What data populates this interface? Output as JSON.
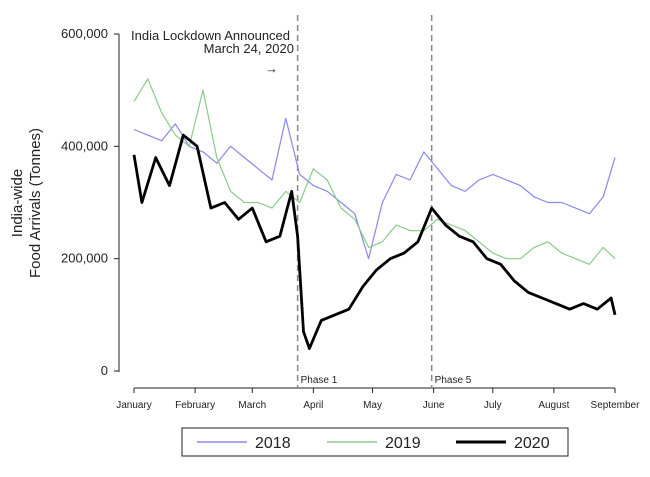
{
  "chart_data": {
    "type": "line",
    "ylabel_line1": "India-wide",
    "ylabel_line2": "Food Arrivals (Tonnes)",
    "xlabel": "",
    "ylim": [
      0,
      600000
    ],
    "yticks": [
      {
        "value": 0,
        "label": "0"
      },
      {
        "value": 200000,
        "label": "200,000"
      },
      {
        "value": 400000,
        "label": "400,000"
      },
      {
        "value": 600000,
        "label": "600,000"
      }
    ],
    "x_domain": [
      "2020-01-01",
      "2020-09-01"
    ],
    "xticks": [
      {
        "date": "2020-01-01",
        "label": "January"
      },
      {
        "date": "2020-02-01",
        "label": "February"
      },
      {
        "date": "2020-03-01",
        "label": "March"
      },
      {
        "date": "2020-04-01",
        "label": "April"
      },
      {
        "date": "2020-05-01",
        "label": "May"
      },
      {
        "date": "2020-06-01",
        "label": "June"
      },
      {
        "date": "2020-07-01",
        "label": "July"
      },
      {
        "date": "2020-08-01",
        "label": "August"
      },
      {
        "date": "2020-09-01",
        "label": "September"
      }
    ],
    "vlines": [
      {
        "date": "2020-03-24",
        "label": "Phase 1"
      },
      {
        "date": "2020-05-31",
        "label": "Phase 5"
      }
    ],
    "annotation": {
      "line1": "India Lockdown Announced",
      "line2": "March 24, 2020",
      "arrow": "→"
    },
    "legend_position": "bottom",
    "series": [
      {
        "name": "2018",
        "color": "#8888ee",
        "x": [
          "2020-01-01",
          "2020-01-08",
          "2020-01-15",
          "2020-01-22",
          "2020-01-29",
          "2020-02-05",
          "2020-02-12",
          "2020-02-19",
          "2020-02-26",
          "2020-03-04",
          "2020-03-11",
          "2020-03-18",
          "2020-03-25",
          "2020-04-01",
          "2020-04-08",
          "2020-04-15",
          "2020-04-22",
          "2020-04-29",
          "2020-05-06",
          "2020-05-13",
          "2020-05-20",
          "2020-05-27",
          "2020-06-03",
          "2020-06-10",
          "2020-06-17",
          "2020-06-24",
          "2020-07-01",
          "2020-07-08",
          "2020-07-15",
          "2020-07-22",
          "2020-07-29",
          "2020-08-05",
          "2020-08-12",
          "2020-08-19",
          "2020-08-26",
          "2020-09-01"
        ],
        "values": [
          430000,
          420000,
          410000,
          440000,
          400000,
          390000,
          370000,
          400000,
          380000,
          360000,
          340000,
          450000,
          350000,
          330000,
          320000,
          300000,
          280000,
          200000,
          300000,
          350000,
          340000,
          390000,
          360000,
          330000,
          320000,
          340000,
          350000,
          340000,
          330000,
          310000,
          300000,
          300000,
          290000,
          280000,
          310000,
          380000
        ]
      },
      {
        "name": "2019",
        "color": "#88cc88",
        "x": [
          "2020-01-01",
          "2020-01-08",
          "2020-01-15",
          "2020-01-22",
          "2020-01-29",
          "2020-02-05",
          "2020-02-12",
          "2020-02-19",
          "2020-02-26",
          "2020-03-04",
          "2020-03-11",
          "2020-03-18",
          "2020-03-25",
          "2020-04-01",
          "2020-04-08",
          "2020-04-15",
          "2020-04-22",
          "2020-04-29",
          "2020-05-06",
          "2020-05-13",
          "2020-05-20",
          "2020-05-27",
          "2020-06-03",
          "2020-06-10",
          "2020-06-17",
          "2020-06-24",
          "2020-07-01",
          "2020-07-08",
          "2020-07-15",
          "2020-07-22",
          "2020-07-29",
          "2020-08-05",
          "2020-08-12",
          "2020-08-19",
          "2020-08-26",
          "2020-09-01"
        ],
        "values": [
          480000,
          520000,
          460000,
          420000,
          400000,
          500000,
          380000,
          320000,
          300000,
          300000,
          290000,
          320000,
          300000,
          360000,
          340000,
          290000,
          270000,
          220000,
          230000,
          260000,
          250000,
          250000,
          270000,
          260000,
          250000,
          230000,
          210000,
          200000,
          200000,
          220000,
          230000,
          210000,
          200000,
          190000,
          220000,
          200000
        ]
      },
      {
        "name": "2020",
        "color": "#000000",
        "x": [
          "2020-01-01",
          "2020-01-05",
          "2020-01-12",
          "2020-01-19",
          "2020-01-26",
          "2020-02-02",
          "2020-02-09",
          "2020-02-16",
          "2020-02-23",
          "2020-03-01",
          "2020-03-08",
          "2020-03-15",
          "2020-03-21",
          "2020-03-24",
          "2020-03-27",
          "2020-03-30",
          "2020-04-05",
          "2020-04-12",
          "2020-04-19",
          "2020-04-26",
          "2020-05-03",
          "2020-05-10",
          "2020-05-17",
          "2020-05-24",
          "2020-05-31",
          "2020-06-07",
          "2020-06-14",
          "2020-06-21",
          "2020-06-28",
          "2020-07-05",
          "2020-07-12",
          "2020-07-19",
          "2020-07-26",
          "2020-08-02",
          "2020-08-09",
          "2020-08-16",
          "2020-08-23",
          "2020-08-30",
          "2020-09-01"
        ],
        "values": [
          385000,
          300000,
          380000,
          330000,
          420000,
          400000,
          290000,
          300000,
          270000,
          290000,
          230000,
          240000,
          320000,
          240000,
          70000,
          40000,
          90000,
          100000,
          110000,
          150000,
          180000,
          200000,
          210000,
          230000,
          290000,
          260000,
          240000,
          230000,
          200000,
          190000,
          160000,
          140000,
          130000,
          120000,
          110000,
          120000,
          110000,
          130000,
          100000
        ]
      }
    ]
  }
}
